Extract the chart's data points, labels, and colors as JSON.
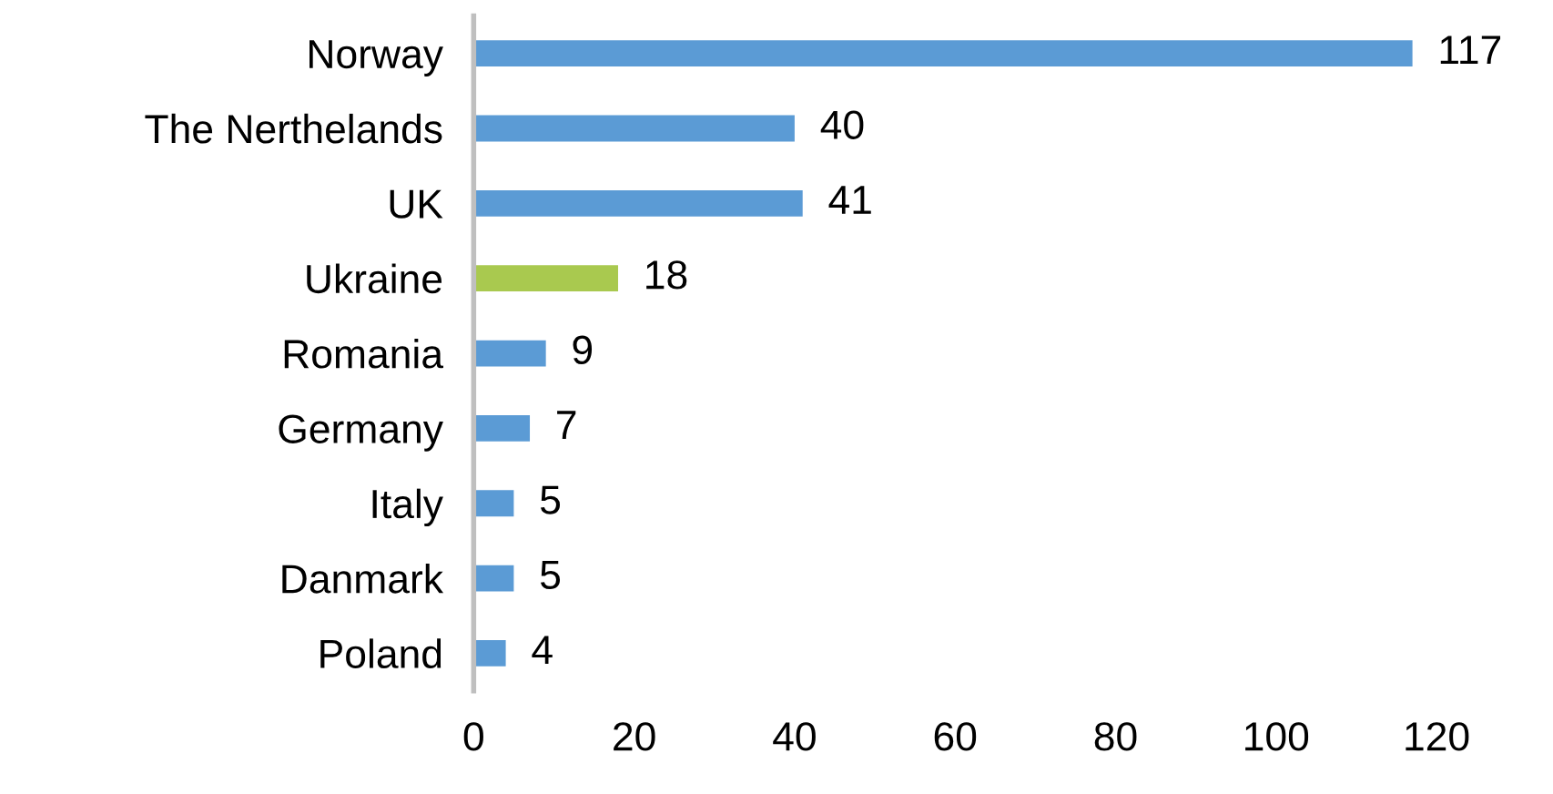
{
  "chart_data": {
    "type": "bar",
    "orientation": "horizontal",
    "categories": [
      "Norway",
      "The Nerthelands",
      "UK",
      "Ukraine",
      "Romania",
      "Germany",
      "Italy",
      "Danmark",
      "Poland"
    ],
    "values": [
      117,
      40,
      41,
      18,
      9,
      7,
      5,
      5,
      4
    ],
    "colors": [
      "#5b9bd5",
      "#5b9bd5",
      "#5b9bd5",
      "#a9c94f",
      "#5b9bd5",
      "#5b9bd5",
      "#5b9bd5",
      "#5b9bd5",
      "#5b9bd5"
    ],
    "xlim": [
      0,
      120
    ],
    "xticks": [
      0,
      20,
      40,
      60,
      80,
      100,
      120
    ],
    "data_labels": true,
    "grid": false
  }
}
